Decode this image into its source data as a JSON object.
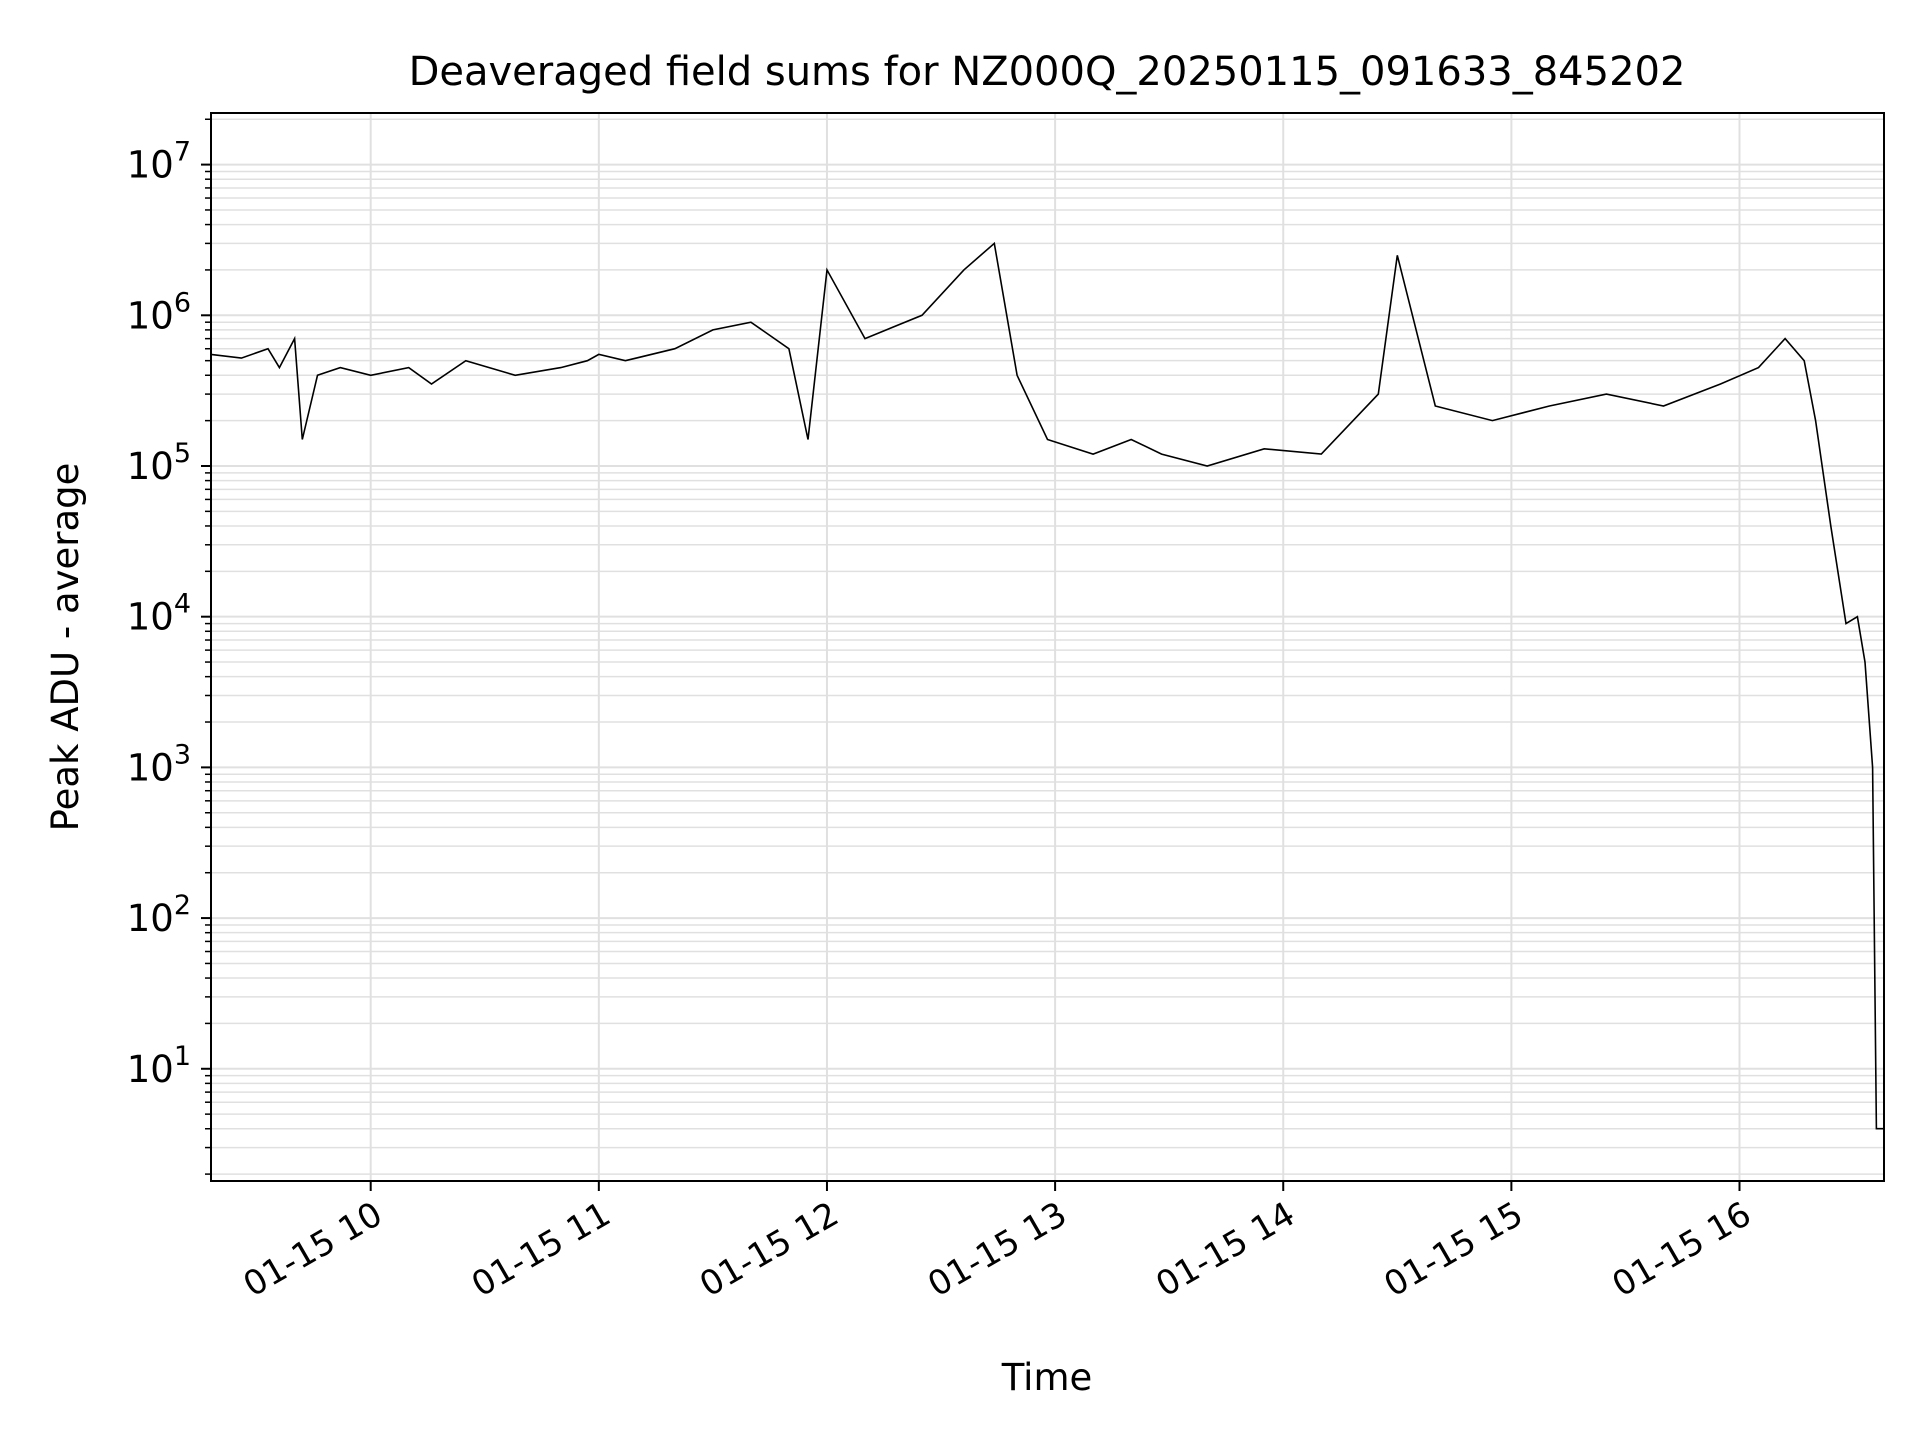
{
  "chart_data": {
    "type": "line",
    "title": "Deaveraged field sums for NZ000Q_20250115_091633_845202",
    "xlabel": "Time",
    "ylabel": "Peak ADU - average",
    "y_scale": "log",
    "ylim": [
      1.8,
      22000000
    ],
    "xlim": [
      "2025-01-15 09:18",
      "2025-01-15 16:38"
    ],
    "grid": true,
    "grid_color": "#e0e0e0",
    "line_color": "#000000",
    "x_ticks": [
      "2025-01-15 10:00",
      "2025-01-15 11:00",
      "2025-01-15 12:00",
      "2025-01-15 13:00",
      "2025-01-15 14:00",
      "2025-01-15 15:00",
      "2025-01-15 16:00"
    ],
    "x_tick_labels": [
      "01-15 10",
      "01-15 11",
      "01-15 12",
      "01-15 13",
      "01-15 14",
      "01-15 15",
      "01-15 16"
    ],
    "y_ticks": [
      10,
      100,
      1000,
      10000,
      100000,
      1000000,
      10000000
    ],
    "y_tick_labels": [
      {
        "base": "10",
        "exp": "1"
      },
      {
        "base": "10",
        "exp": "2"
      },
      {
        "base": "10",
        "exp": "3"
      },
      {
        "base": "10",
        "exp": "4"
      },
      {
        "base": "10",
        "exp": "5"
      },
      {
        "base": "10",
        "exp": "6"
      },
      {
        "base": "10",
        "exp": "7"
      }
    ],
    "series": [
      {
        "x": [
          "2025-01-15 09:18",
          "2025-01-15 09:26",
          "2025-01-15 09:33",
          "2025-01-15 09:36",
          "2025-01-15 09:40",
          "2025-01-15 09:42",
          "2025-01-15 09:46",
          "2025-01-15 09:52",
          "2025-01-15 10:00",
          "2025-01-15 10:10",
          "2025-01-15 10:16",
          "2025-01-15 10:25",
          "2025-01-15 10:38",
          "2025-01-15 10:50",
          "2025-01-15 10:57",
          "2025-01-15 11:00",
          "2025-01-15 11:07",
          "2025-01-15 11:20",
          "2025-01-15 11:30",
          "2025-01-15 11:40",
          "2025-01-15 11:50",
          "2025-01-15 11:55",
          "2025-01-15 12:00",
          "2025-01-15 12:10",
          "2025-01-15 12:25",
          "2025-01-15 12:36",
          "2025-01-15 12:44",
          "2025-01-15 12:50",
          "2025-01-15 12:58",
          "2025-01-15 13:10",
          "2025-01-15 13:20",
          "2025-01-15 13:28",
          "2025-01-15 13:40",
          "2025-01-15 13:55",
          "2025-01-15 14:10",
          "2025-01-15 14:25",
          "2025-01-15 14:30",
          "2025-01-15 14:40",
          "2025-01-15 14:55",
          "2025-01-15 15:10",
          "2025-01-15 15:25",
          "2025-01-15 15:40",
          "2025-01-15 15:55",
          "2025-01-15 16:05",
          "2025-01-15 16:12",
          "2025-01-15 16:17",
          "2025-01-15 16:20",
          "2025-01-15 16:24",
          "2025-01-15 16:28",
          "2025-01-15 16:31",
          "2025-01-15 16:33",
          "2025-01-15 16:35",
          "2025-01-15 16:36",
          "2025-01-15 16:38"
        ],
        "y": [
          550000,
          520000,
          600000,
          450000,
          700000,
          150000,
          400000,
          450000,
          400000,
          450000,
          350000,
          500000,
          400000,
          450000,
          500000,
          550000,
          500000,
          600000,
          800000,
          900000,
          600000,
          150000,
          2000000,
          700000,
          1000000,
          2000000,
          3000000,
          400000,
          150000,
          120000,
          150000,
          120000,
          100000,
          130000,
          120000,
          300000,
          2500000,
          250000,
          200000,
          250000,
          300000,
          250000,
          350000,
          450000,
          700000,
          500000,
          200000,
          40000,
          9000,
          10000,
          5000,
          1000,
          4,
          4
        ]
      }
    ]
  }
}
